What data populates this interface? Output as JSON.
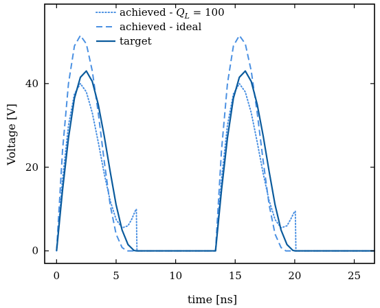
{
  "chart_data": {
    "type": "line",
    "xlabel": "time [ns]",
    "ylabel": "Voltage [V]",
    "xlim": [
      -1,
      26.7
    ],
    "ylim": [
      -3,
      59
    ],
    "xticks": [
      0,
      5,
      10,
      15,
      20,
      25
    ],
    "yticks": [
      0,
      20,
      40
    ],
    "grid": false,
    "legend_position": "top-center",
    "series": [
      {
        "name": "achieved - Q_L = 100",
        "legend_prefix": "achieved - ",
        "legend_math": "Q",
        "legend_sub": "L",
        "legend_suffix": " = 100",
        "color": "#4a90e2",
        "style": "dotted",
        "x": [
          0,
          0.5,
          1,
          1.5,
          2,
          2.5,
          3,
          3.5,
          4,
          4.5,
          5,
          5.5,
          6,
          6.3,
          6.6,
          6.7,
          6.75,
          13.35,
          13.85,
          14.35,
          14.85,
          15.35,
          15.85,
          16.35,
          16.85,
          17.35,
          17.85,
          18.35,
          18.85,
          19.35,
          19.65,
          19.95,
          20.05,
          20.1,
          26.7
        ],
        "y": [
          0,
          17,
          30,
          37.5,
          40,
          38,
          33,
          26,
          18.5,
          12,
          7.5,
          5.5,
          6,
          7.5,
          9.5,
          10,
          0,
          0,
          17,
          30,
          37.5,
          40,
          38,
          33,
          26,
          18.5,
          12,
          7.5,
          5.5,
          6,
          7.5,
          9.2,
          9.5,
          0,
          0
        ]
      },
      {
        "name": "achieved - ideal",
        "legend_prefix": "achieved - ideal",
        "color": "#4a90e2",
        "style": "dashed",
        "x": [
          0,
          0.5,
          1,
          1.5,
          2,
          2.5,
          3,
          3.5,
          4,
          4.5,
          5,
          5.5,
          5.9,
          13.35,
          13.85,
          14.35,
          14.85,
          15.35,
          15.85,
          16.35,
          16.85,
          17.35,
          17.85,
          18.35,
          18.85,
          19.25,
          26.7
        ],
        "y": [
          0,
          24,
          40,
          49,
          51.5,
          49.5,
          43,
          33,
          21.5,
          11,
          4,
          0.8,
          0,
          0,
          24,
          40,
          49,
          51.5,
          49.5,
          43,
          33,
          21.5,
          11,
          4,
          0.8,
          0,
          0
        ]
      },
      {
        "name": "target",
        "legend_prefix": "target",
        "color": "#0a5a9c",
        "style": "solid",
        "x": [
          0,
          0.5,
          1,
          1.5,
          2,
          2.5,
          3,
          3.5,
          4,
          4.5,
          5,
          5.5,
          6,
          6.5,
          6.7,
          13.35,
          13.85,
          14.35,
          14.85,
          15.35,
          15.85,
          16.35,
          16.85,
          17.35,
          17.85,
          18.35,
          18.85,
          19.35,
          19.85,
          20.05,
          26.7
        ],
        "y": [
          0,
          14.5,
          27,
          36.5,
          41.5,
          43,
          40.5,
          35,
          27.5,
          19,
          11,
          5,
          1.5,
          0.1,
          0,
          0,
          14.5,
          27,
          36.5,
          41.5,
          43,
          40.5,
          35,
          27.5,
          19,
          11,
          5,
          1.5,
          0.1,
          0,
          0
        ]
      }
    ]
  }
}
